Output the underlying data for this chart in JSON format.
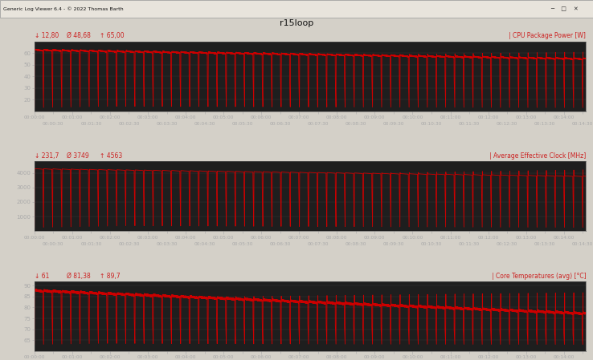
{
  "title": "r15loop",
  "window_title": "Generic Log Viewer 6.4 - © 2022 Thomas Barth",
  "outer_bg": "#d4d0c8",
  "titlebar_bg": "#e8e4dc",
  "plot_bg": "#1e1e1e",
  "line_color": "#cc0000",
  "tick_label_color": "#aaaaaa",
  "axis_label_color": "#aaaaaa",
  "grid_color": "#383838",
  "total_seconds": 875,
  "panels": [
    {
      "ylabel": "CPU Package Power [W]",
      "stats_min": "↓ 12,80",
      "stats_avg": "Ø 48,68",
      "stats_max": "↑ 65,00",
      "ymin": 10,
      "ymax": 70,
      "yticks": [
        20,
        30,
        40,
        50,
        60
      ],
      "run_high": 63,
      "run_low": 45,
      "drop_low": 13,
      "cycle_seconds": 14.5,
      "drop_seconds": 1.2,
      "rise_seconds": 0.3
    },
    {
      "ylabel": "Average Effective Clock [MHz]",
      "stats_min": "↓ 231,7",
      "stats_avg": "Ø 3749",
      "stats_max": "↑ 4563",
      "ymin": 0,
      "ymax": 4800,
      "yticks": [
        1000,
        2000,
        3000,
        4000
      ],
      "run_high": 4300,
      "run_low": 3600,
      "drop_low": 250,
      "cycle_seconds": 14.5,
      "drop_seconds": 1.2,
      "rise_seconds": 0.3
    },
    {
      "ylabel": "Core Temperatures (avg) [°C]",
      "stats_min": "↓ 61",
      "stats_avg": "Ø 81,38",
      "stats_max": "↑ 89,7",
      "ymin": 60,
      "ymax": 92,
      "yticks": [
        65,
        70,
        75,
        80,
        85,
        90
      ],
      "run_high": 88,
      "run_low": 78,
      "drop_low": 63,
      "cycle_seconds": 14.5,
      "drop_seconds": 1.2,
      "rise_seconds": 0.3
    }
  ]
}
